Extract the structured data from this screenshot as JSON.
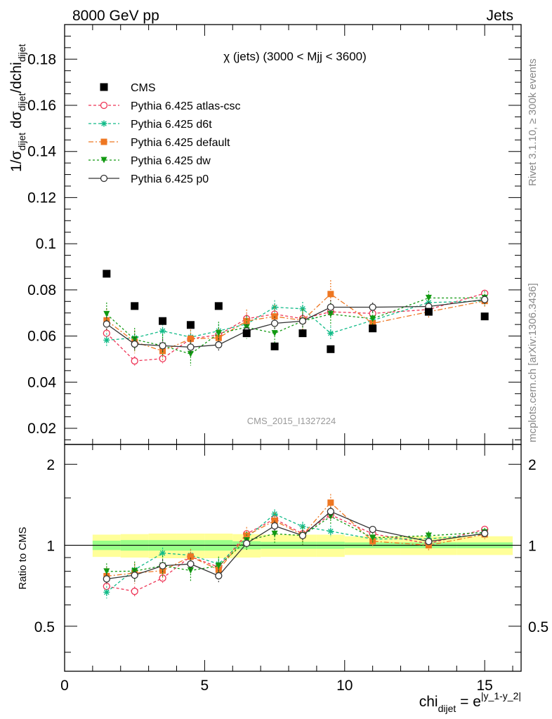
{
  "header": {
    "left_title": "8000 GeV pp",
    "right_title": "Jets",
    "side_note_top": "Rivet 3.1.10, ≥ 300k events",
    "side_note_bottom": "mcplots.cern.ch [arXiv:1306.3436]"
  },
  "chart_data": {
    "type": "scatter",
    "title": "χ (jets) (3000 < Mjj < 3600)",
    "analysis_label": "CMS_2015_I1327224",
    "ylabel_parts": {
      "a": "1/σ",
      "a_sub": "dijet",
      "b": " dσ",
      "b_sub": "dijet",
      "c": "/dchi",
      "c_sub": "dijet"
    },
    "xlabel_parts": {
      "a": "chi",
      "a_sub": "dijet",
      "b": " = e",
      "b_sup": "|y_1-y_2|"
    },
    "ratio_ylabel": "Ratio to CMS",
    "xlim": [
      0,
      16.3
    ],
    "ylim": [
      0.013,
      0.195
    ],
    "ratio_ylim": [
      0.34,
      2.37
    ],
    "x_ticks": [
      0,
      5,
      10,
      15
    ],
    "y_ticks": [
      0.02,
      0.04,
      0.06,
      0.08,
      0.1,
      0.12,
      0.14,
      0.16,
      0.18
    ],
    "y_tick_labels": [
      "0.02",
      "0.04",
      "0.06",
      "0.08",
      "0.1",
      "0.12",
      "0.14",
      "0.16",
      "0.18"
    ],
    "ratio_ticks": [
      0.5,
      1,
      2
    ],
    "ratio_tick_labels": [
      "0.5",
      "1",
      "2"
    ],
    "x": [
      1.5,
      2.5,
      3.5,
      4.5,
      5.5,
      6.5,
      7.5,
      8.5,
      9.5,
      11,
      13,
      15
    ],
    "bin_edges": [
      1,
      2,
      3,
      4,
      5,
      6,
      7,
      8,
      9,
      10,
      12,
      14,
      16
    ],
    "data": {
      "name": "CMS",
      "values": [
        0.087,
        0.073,
        0.0665,
        0.0648,
        0.073,
        0.0612,
        0.0555,
        0.0612,
        0.0543,
        0.0633,
        0.0705,
        0.0685
      ],
      "band_inner": [
        0.08,
        0.09,
        0.09,
        0.09,
        0.09,
        0.07,
        0.06,
        0.06,
        0.06,
        0.05,
        0.05,
        0.05
      ],
      "band_outer": [
        0.17,
        0.18,
        0.19,
        0.19,
        0.19,
        0.18,
        0.17,
        0.17,
        0.17,
        0.14,
        0.14,
        0.14
      ]
    },
    "series": [
      {
        "name": "Pythia 6.425 atlas-csc",
        "color": "#ee3355",
        "marker": "circle-open",
        "dash": "4,3",
        "values": [
          0.0612,
          0.0492,
          0.0502,
          0.0588,
          0.0605,
          0.0675,
          0.0695,
          0.0675,
          0.0705,
          0.0698,
          0.0715,
          0.0785
        ],
        "errors": [
          0.002,
          0.002,
          0.002,
          0.002,
          0.002,
          0.002,
          0.002,
          0.002,
          0.002,
          0.0015,
          0.0015,
          0.0015
        ]
      },
      {
        "name": "Pythia 6.425 d6t",
        "color": "#11bb88",
        "marker": "star",
        "dash": "4,3",
        "values": [
          0.0582,
          0.0592,
          0.0622,
          0.0595,
          0.0622,
          0.0652,
          0.0725,
          0.0718,
          0.0612,
          0.0668,
          0.0745,
          0.0752
        ],
        "errors": [
          0.003,
          0.003,
          0.003,
          0.003,
          0.003,
          0.003,
          0.003,
          0.003,
          0.003,
          0.002,
          0.002,
          0.002
        ]
      },
      {
        "name": "Pythia 6.425 default",
        "color": "#ee7722",
        "marker": "square",
        "dash": "7,3,2,3",
        "values": [
          0.0668,
          0.0575,
          0.0535,
          0.0588,
          0.0592,
          0.0665,
          0.0685,
          0.0668,
          0.0782,
          0.0655,
          0.0705,
          0.0752
        ],
        "errors": [
          0.005,
          0.005,
          0.004,
          0.004,
          0.004,
          0.005,
          0.005,
          0.005,
          0.006,
          0.003,
          0.003,
          0.003
        ]
      },
      {
        "name": "Pythia 6.425 dw",
        "color": "#119911",
        "marker": "triangle-down",
        "dash": "3,3",
        "values": [
          0.0695,
          0.0585,
          0.0558,
          0.0522,
          0.0612,
          0.0638,
          0.0612,
          0.0665,
          0.0695,
          0.0675,
          0.0765,
          0.0765
        ],
        "errors": [
          0.005,
          0.005,
          0.005,
          0.005,
          0.005,
          0.005,
          0.005,
          0.005,
          0.005,
          0.003,
          0.003,
          0.003
        ]
      },
      {
        "name": "Pythia 6.425 p0",
        "color": "#333333",
        "marker": "circle-open-grey",
        "dash": "",
        "values": [
          0.0652,
          0.0565,
          0.0558,
          0.0552,
          0.0562,
          0.0622,
          0.0655,
          0.0665,
          0.0725,
          0.0725,
          0.0728,
          0.0758
        ],
        "errors": [
          0.003,
          0.003,
          0.003,
          0.003,
          0.003,
          0.003,
          0.003,
          0.003,
          0.003,
          0.002,
          0.002,
          0.002
        ]
      }
    ],
    "legend_position": "top-left",
    "grid": false
  }
}
